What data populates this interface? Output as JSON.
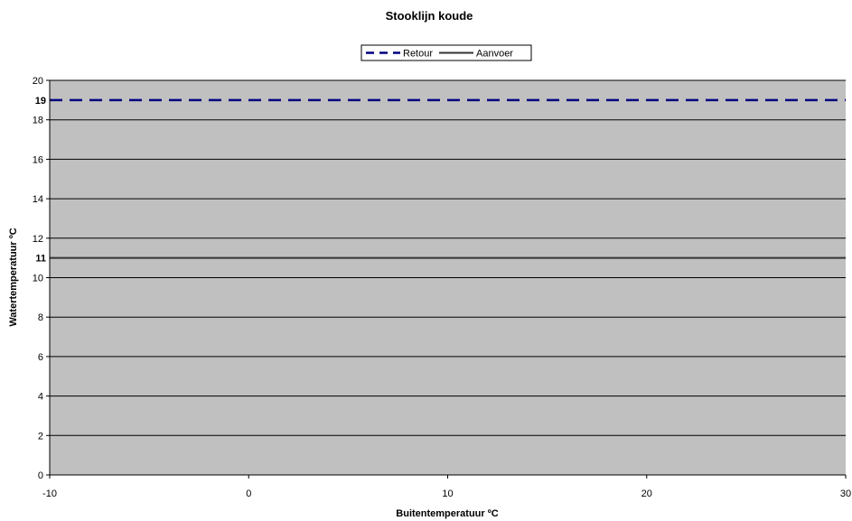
{
  "chart_data": {
    "type": "line",
    "title": "Stooklijn koude",
    "xlabel": "Buitentemperatuur ºC",
    "ylabel": "Watertemperatuur ºC",
    "xlim": [
      -10,
      30
    ],
    "ylim": [
      0,
      20
    ],
    "x_ticks": [
      "-10",
      "0",
      "10",
      "20",
      "30"
    ],
    "y_ticks": [
      "0",
      "2",
      "4",
      "6",
      "8",
      "10",
      "12",
      "14",
      "16",
      "18",
      "20"
    ],
    "grid": true,
    "legend_position": "top-center",
    "background": "#c0c0c0",
    "series": [
      {
        "name": "Retour",
        "x": [
          -10,
          30
        ],
        "values": [
          19,
          19
        ],
        "color": "#000080",
        "style": "dashed",
        "end_label": "19"
      },
      {
        "name": "Aanvoer",
        "x": [
          -10,
          30
        ],
        "values": [
          11,
          11
        ],
        "color": "#333333",
        "style": "solid",
        "end_label": "11"
      }
    ]
  }
}
